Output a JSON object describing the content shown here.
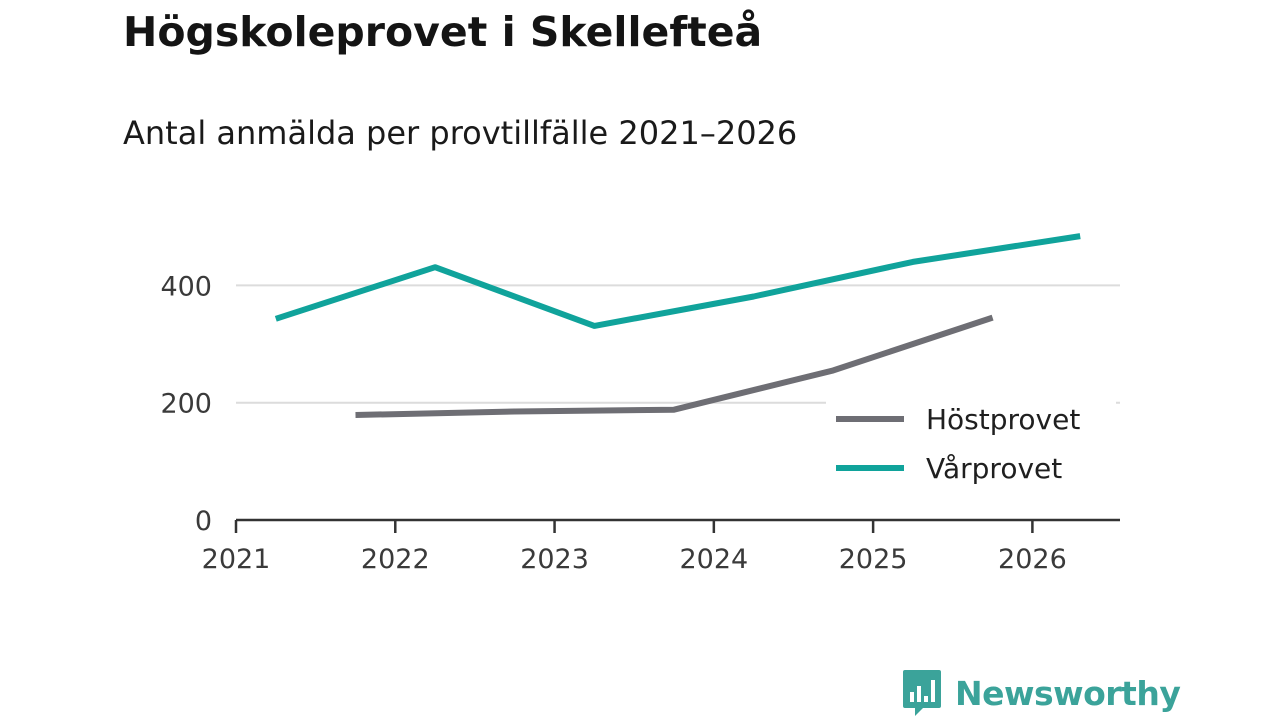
{
  "chart_data": {
    "type": "line",
    "title": "Högskoleprovet i Skellefteå",
    "subtitle": "Antal anmälda per provtillfälle 2021–2026",
    "x_ticks": [
      "2021",
      "2022",
      "2023",
      "2024",
      "2025",
      "2026"
    ],
    "y_ticks": [
      "0",
      "200",
      "400"
    ],
    "ylim": [
      0,
      520
    ],
    "xlim": [
      2021,
      2026.55
    ],
    "grid": true,
    "legend_position": "bottom-right",
    "series": [
      {
        "name": "Höstprovet",
        "color": "#6e6e74",
        "x": [
          2021.75,
          2022.75,
          2023.75,
          2024.75,
          2025.75
        ],
        "values": [
          179,
          185,
          188,
          255,
          345
        ]
      },
      {
        "name": "Vårprovet",
        "color": "#10a39b",
        "x": [
          2021.25,
          2022.25,
          2023.25,
          2024.25,
          2025.25,
          2026.3
        ],
        "values": [
          343,
          431,
          331,
          381,
          440,
          484
        ]
      }
    ]
  },
  "brand": {
    "name": "Newsworthy",
    "color": "#3ba39a",
    "icon": "bar-chart-speech-bubble-icon"
  }
}
